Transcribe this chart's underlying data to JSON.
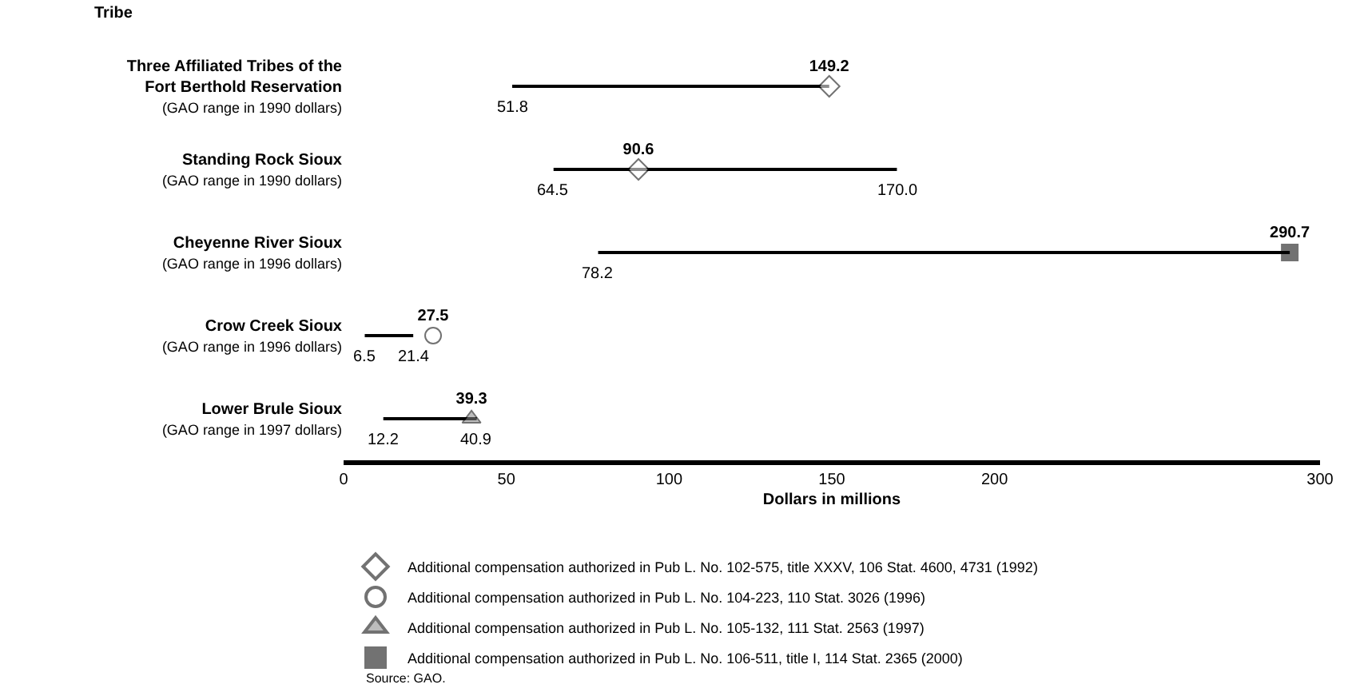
{
  "chart_data": {
    "type": "bar",
    "orientation": "horizontal",
    "ylabel": "Tribe",
    "xlabel": "Dollars in millions",
    "categories": [
      "Three Affiliated Tribes of the\nFort Berthold Reservation\n(GAO range in 1990 dollars)",
      "Standing Rock Sioux\n(GAO range in 1990 dollars)",
      "Cheyenne River Sioux\n(GAO range in 1996 dollars)",
      "Crow Creek Sioux\n(GAO range in 1996 dollars)",
      "Lower Brule Sioux\n(GAO range in 1997 dollars)"
    ],
    "series": [
      {
        "color": "#000000",
        "base": [
          51.8,
          64.5,
          78.2,
          6.5,
          12.2
        ],
        "values": [
          97.4,
          105.5,
          212.5,
          14.9,
          28.7
        ]
      },
      {
        "type": "scatter",
        "name": "Additional compensation authorized in Pub L. No. 102-575, title XXXV, 106 Stat. 4600, 4731 (1992)",
        "marker": "diamond",
        "color": "#ffffff",
        "values": [
          149.2,
          90.6,
          null,
          null,
          null
        ],
        "value_labels": [
          "149.2",
          "90.6",
          null,
          null,
          null
        ]
      },
      {
        "type": "scatter",
        "name": "Additional compensation authorized in Pub L. No. 104-223, 110 Stat. 3026 (1996)",
        "marker": "circle",
        "color": "#ffffff",
        "values": [
          null,
          null,
          null,
          27.5,
          null
        ],
        "value_labels": [
          null,
          null,
          null,
          "27.5",
          null
        ]
      },
      {
        "type": "scatter",
        "name": "Additional compensation authorized in Pub L. No. 105-132, 111 Stat. 2563 (1997)",
        "marker": "triangle",
        "color": "#888888",
        "values": [
          null,
          null,
          null,
          null,
          39.3
        ],
        "value_labels": [
          null,
          null,
          null,
          null,
          "39.3"
        ]
      },
      {
        "type": "scatter",
        "name": "Additional compensation authorized in Pub L. No. 106-511, title I, 114 Stat. 2365 (2000)",
        "marker": "square",
        "color": "#000000",
        "values": [
          null,
          null,
          290.7,
          null,
          null
        ],
        "value_labels": [
          null,
          null,
          "290.7",
          null,
          null
        ]
      }
    ],
    "xlim": [
      0,
      300
    ],
    "xticks": [
      0,
      50,
      100,
      150,
      200,
      300
    ],
    "grid": false,
    "legend": "bottom",
    "annotations": [
      {
        "text": "51.8",
        "x": 51.8,
        "y": "Three Affiliated Tribes of the\nFort Berthold Reservation\n(GAO range in 1990 dollars)"
      },
      {
        "text": "64.5",
        "x": 64.5,
        "y": "Standing Rock Sioux\n(GAO range in 1990 dollars)"
      },
      {
        "text": "170.0",
        "x": 170.0,
        "y": "Standing Rock Sioux\n(GAO range in 1990 dollars)"
      },
      {
        "text": "78.2",
        "x": 78.2,
        "y": "Cheyenne River Sioux\n(GAO range in 1996 dollars)"
      },
      {
        "text": "6.5",
        "x": 6.5,
        "y": "Crow Creek Sioux\n(GAO range in 1996 dollars)"
      },
      {
        "text": "21.4",
        "x": 21.4,
        "y": "Crow Creek Sioux\n(GAO range in 1996 dollars)"
      },
      {
        "text": "12.2",
        "x": 12.2,
        "y": "Lower Brule Sioux\n(GAO range in 1997 dollars)"
      },
      {
        "text": "40.9",
        "x": 40.9,
        "y": "Lower Brule Sioux\n(GAO range in 1997 dollars)"
      },
      "Source: GAO."
    ]
  }
}
